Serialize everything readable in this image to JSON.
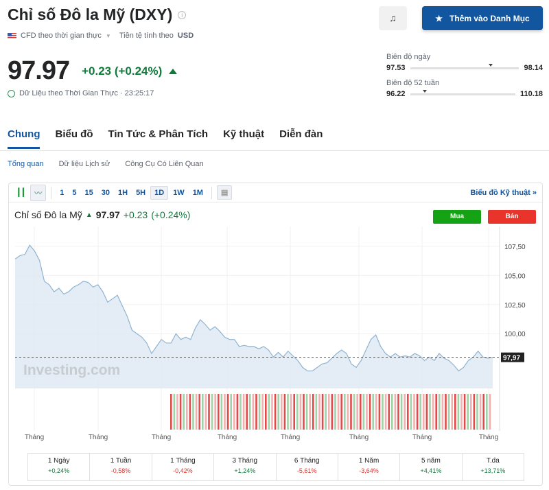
{
  "header": {
    "title": "Chỉ số Đô la Mỹ (DXY)",
    "info_icon": "info-icon",
    "cfd_label": "CFD theo thời gian thực",
    "currency_label": "Tiền tệ tính theo",
    "currency": "USD",
    "price": "97.97",
    "change": "+0.23 (+0.24%)",
    "realtime": "Dữ Liệu theo Thời Gian Thực · 23:25:17",
    "bell_icon": "bell-plus-icon",
    "watchlist_label": "Thêm vào Danh Mục"
  },
  "ranges": {
    "day_label": "Biên độ ngày",
    "day_low": "97.53",
    "day_high": "98.14",
    "day_position": 0.72,
    "week52_label": "Biên độ 52 tuần",
    "week52_low": "96.22",
    "week52_high": "110.18",
    "week52_position": 0.12
  },
  "tabs": [
    "Chung",
    "Biểu đồ",
    "Tin Tức & Phân Tích",
    "Kỹ thuật",
    "Diễn đàn"
  ],
  "subtabs": [
    "Tổng quan",
    "Dữ liệu Lịch sử",
    "Công Cụ Có Liên Quan"
  ],
  "toolbar": {
    "intervals": [
      "1",
      "5",
      "15",
      "30",
      "1H",
      "5H",
      "1D",
      "1W",
      "1M"
    ],
    "selected": "1D",
    "tech_link": "Biểu đồ Kỹ thuật »"
  },
  "chart_header": {
    "name": "Chỉ số Đô la Mỹ",
    "price": "97.97",
    "change": "+0.23",
    "pct": "(+0.24%)",
    "buy": "Mua",
    "sell": "Bán"
  },
  "colors": {
    "up": "#0e7b3b",
    "down": "#e0312b",
    "brand": "#1256a0"
  },
  "chart_data": {
    "type": "area",
    "watermark": "Investing.com",
    "xlabels": [
      "Tháng",
      "Tháng",
      "Tháng",
      "Tháng",
      "Tháng",
      "Tháng",
      "Tháng",
      "Tháng"
    ],
    "yticks": [
      "107,50",
      "105,00",
      "102,50",
      "100,00"
    ],
    "ytick_values": [
      107.5,
      105,
      102.5,
      100
    ],
    "ylim": [
      95.3,
      109.2
    ],
    "last_label": "97,97",
    "last_value": 97.97,
    "values": [
      106.4,
      106.7,
      106.8,
      107.6,
      107.1,
      106.3,
      104.5,
      104.2,
      103.6,
      103.9,
      103.4,
      103.6,
      104.0,
      104.2,
      104.5,
      104.4,
      104.0,
      104.2,
      103.6,
      102.7,
      103.0,
      103.3,
      102.4,
      101.5,
      100.3,
      100.0,
      99.7,
      99.2,
      98.3,
      98.9,
      99.5,
      99.2,
      99.2,
      100.0,
      99.5,
      99.7,
      99.5,
      100.5,
      101.2,
      100.8,
      100.3,
      100.6,
      100.2,
      99.7,
      99.5,
      99.5,
      98.9,
      99.0,
      98.9,
      98.9,
      98.7,
      98.9,
      98.6,
      98.0,
      98.4,
      98.0,
      98.5,
      98.1,
      97.7,
      97.1,
      96.8,
      96.8,
      97.1,
      97.4,
      97.5,
      97.9,
      98.3,
      98.6,
      98.3,
      97.4,
      97.1,
      97.7,
      98.6,
      99.5,
      99.9,
      98.9,
      98.3,
      98.0,
      98.3,
      98.0,
      98.1,
      98.0,
      98.3,
      98.1,
      97.7,
      98.0,
      97.7,
      98.3,
      97.9,
      97.7,
      97.3,
      96.8,
      97.1,
      97.7,
      98.0,
      98.5,
      98.0,
      97.9,
      97.97
    ]
  },
  "performance": [
    {
      "label": "1 Ngày",
      "value": "+0,24%"
    },
    {
      "label": "1 Tuần",
      "value": "-0,58%"
    },
    {
      "label": "1 Tháng",
      "value": "-0,42%"
    },
    {
      "label": "3 Tháng",
      "value": "+1,24%"
    },
    {
      "label": "6 Tháng",
      "value": "-5,61%"
    },
    {
      "label": "1 Năm",
      "value": "-3,64%"
    },
    {
      "label": "5 năm",
      "value": "+4,41%"
    },
    {
      "label": "T.da",
      "value": "+13,71%"
    }
  ]
}
